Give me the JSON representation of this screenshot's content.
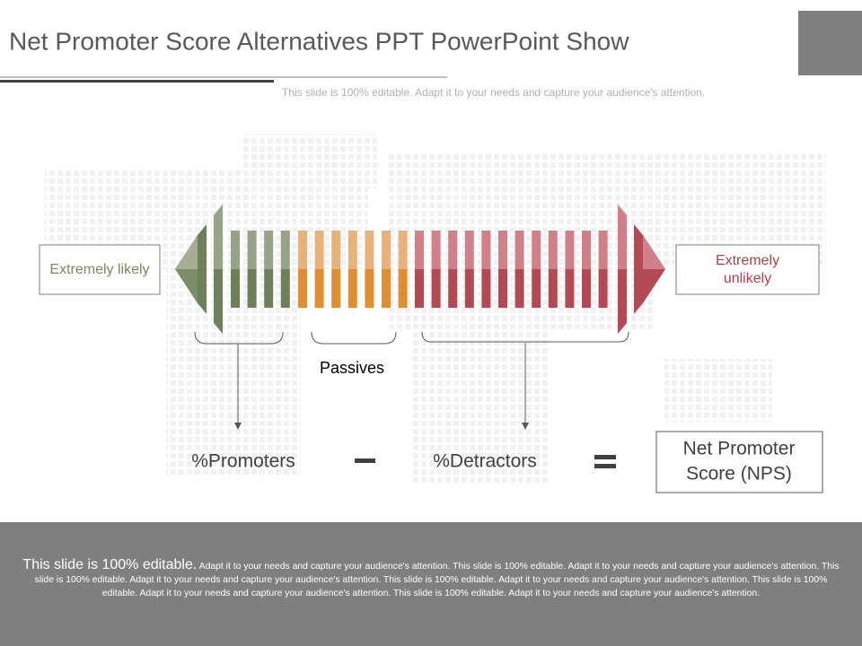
{
  "header": {
    "title": "Net Promoter Score Alternatives PPT PowerPoint Show",
    "subtitle": "This slide is 100% editable. Adapt it to your needs and capture your audience's attention."
  },
  "scale": {
    "left_label": "Extremely likely",
    "right_label": "Extremely unlikely",
    "passives": "Passives"
  },
  "formula": {
    "promoters": "%Promoters",
    "detractors": "%Detractors",
    "result": [
      "Net Promoter",
      "Score (NPS)"
    ]
  },
  "footer": {
    "lead": "This slide is 100% editable.",
    "body": "Adapt it to your needs and capture your audience's attention. This slide is 100% editable. Adapt it to your needs and capture your audience's attention. This slide is 100% editable. Adapt it to your needs and capture your audience's attention. This slide is 100% editable. Adapt it to your needs and capture your audience's attention. This slide is 100% editable. Adapt it to your needs and capture your audience's attention. This slide is 100% editable. Adapt it to your needs and capture your audience's attention."
  }
}
